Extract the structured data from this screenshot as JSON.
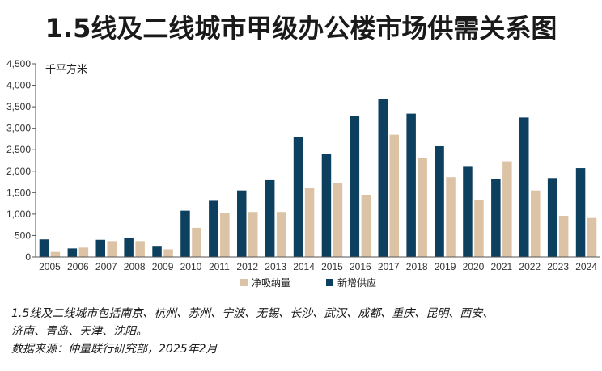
{
  "colors": {
    "absorption": "#ddc3a5",
    "supply": "#0d3f5f",
    "axis": "#555555"
  },
  "chart_data": {
    "type": "bar",
    "title": "1.5线及二线城市甲级办公楼市场供需关系图",
    "ylabel": "千平方米",
    "ylim": [
      0,
      4500
    ],
    "yticks": [
      "0",
      "500",
      "1,000",
      "1,500",
      "2,000",
      "2,500",
      "3,000",
      "3,500",
      "4,000",
      "4,500"
    ],
    "ytick_values": [
      0,
      500,
      1000,
      1500,
      2000,
      2500,
      3000,
      3500,
      4000,
      4500
    ],
    "grid": false,
    "legend_position": "bottom",
    "categories": [
      "2005",
      "2006",
      "2007",
      "2008",
      "2009",
      "2010",
      "2011",
      "2012",
      "2013",
      "2014",
      "2015",
      "2016",
      "2017",
      "2018",
      "2019",
      "2020",
      "2021",
      "2022",
      "2023",
      "2024"
    ],
    "series": [
      {
        "name": "净吸纳量",
        "values": [
          120,
          220,
          370,
          370,
          180,
          680,
          1020,
          1050,
          1050,
          1610,
          1720,
          1450,
          2850,
          2310,
          1860,
          1330,
          2230,
          1550,
          960,
          910
        ]
      },
      {
        "name": "新增供应",
        "values": [
          410,
          200,
          400,
          450,
          260,
          1080,
          1310,
          1550,
          1790,
          2790,
          2400,
          3290,
          3690,
          3340,
          2580,
          2120,
          1820,
          3250,
          1840,
          2070
        ]
      }
    ],
    "xtick_labels": [
      "2005",
      "2006",
      "2007",
      "2008",
      "2009",
      "2010",
      "2011",
      "2012",
      "2013",
      "2014",
      "2015",
      "2016",
      "2017",
      "2018",
      "2019",
      "2020",
      "2021",
      "2022",
      "2023",
      "2024"
    ]
  },
  "notes": {
    "line1": "1.5线及二线城市包括南京、杭州、苏州、宁波、无锡、长沙、武汉、成都、重庆、昆明、西安、",
    "line2": "济南、青岛、天津、沈阳。",
    "line3": "数据来源：仲量联行研究部，2025年2月"
  }
}
